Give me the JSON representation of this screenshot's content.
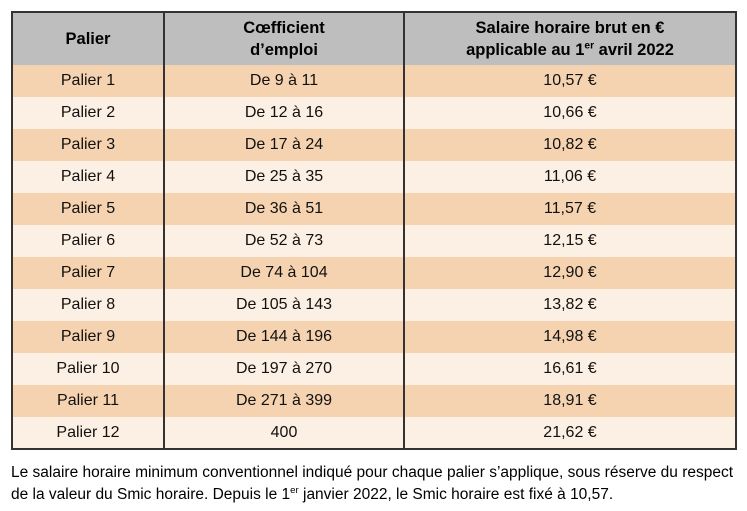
{
  "colors": {
    "header_bg": "#bebebe",
    "row_odd": "#f5d3b0",
    "row_even": "#fcefe3",
    "border": "#333333",
    "text": "#111111"
  },
  "table": {
    "headers": {
      "palier": "Palier",
      "coefficient_line1": "Cœfficient",
      "coefficient_line2": "d’emploi",
      "salary_line1": "Salaire horaire brut en €",
      "salary_line2_pre": "applicable au 1",
      "salary_line2_sup": "er",
      "salary_line2_post": " avril 2022"
    },
    "rows": [
      {
        "palier": "Palier 1",
        "coefficient": "De 9 à 11",
        "salary": "10,57 €"
      },
      {
        "palier": "Palier 2",
        "coefficient": "De 12 à 16",
        "salary": "10,66 €"
      },
      {
        "palier": "Palier 3",
        "coefficient": "De 17 à 24",
        "salary": "10,82 €"
      },
      {
        "palier": "Palier 4",
        "coefficient": "De 25 à 35",
        "salary": "11,06 €"
      },
      {
        "palier": "Palier 5",
        "coefficient": "De 36 à 51",
        "salary": "11,57 €"
      },
      {
        "palier": "Palier 6",
        "coefficient": "De 52 à 73",
        "salary": "12,15 €"
      },
      {
        "palier": "Palier 7",
        "coefficient": "De 74 à 104",
        "salary": "12,90 €"
      },
      {
        "palier": "Palier 8",
        "coefficient": "De 105 à 143",
        "salary": "13,82 €"
      },
      {
        "palier": "Palier 9",
        "coefficient": "De 144 à 196",
        "salary": "14,98 €"
      },
      {
        "palier": "Palier 10",
        "coefficient": "De 197 à 270",
        "salary": "16,61 €"
      },
      {
        "palier": "Palier 11",
        "coefficient": "De 271 à 399",
        "salary": "18,91 €"
      },
      {
        "palier": "Palier 12",
        "coefficient": "400",
        "salary": "21,62 €"
      }
    ]
  },
  "footnote": {
    "part1": "Le salaire horaire minimum conventionnel indiqué pour chaque palier s’applique, sous réserve du respect de la valeur du Smic horaire. Depuis le 1",
    "sup": "er",
    "part2": " janvier 2022, le Smic horaire est fixé à 10,57."
  }
}
